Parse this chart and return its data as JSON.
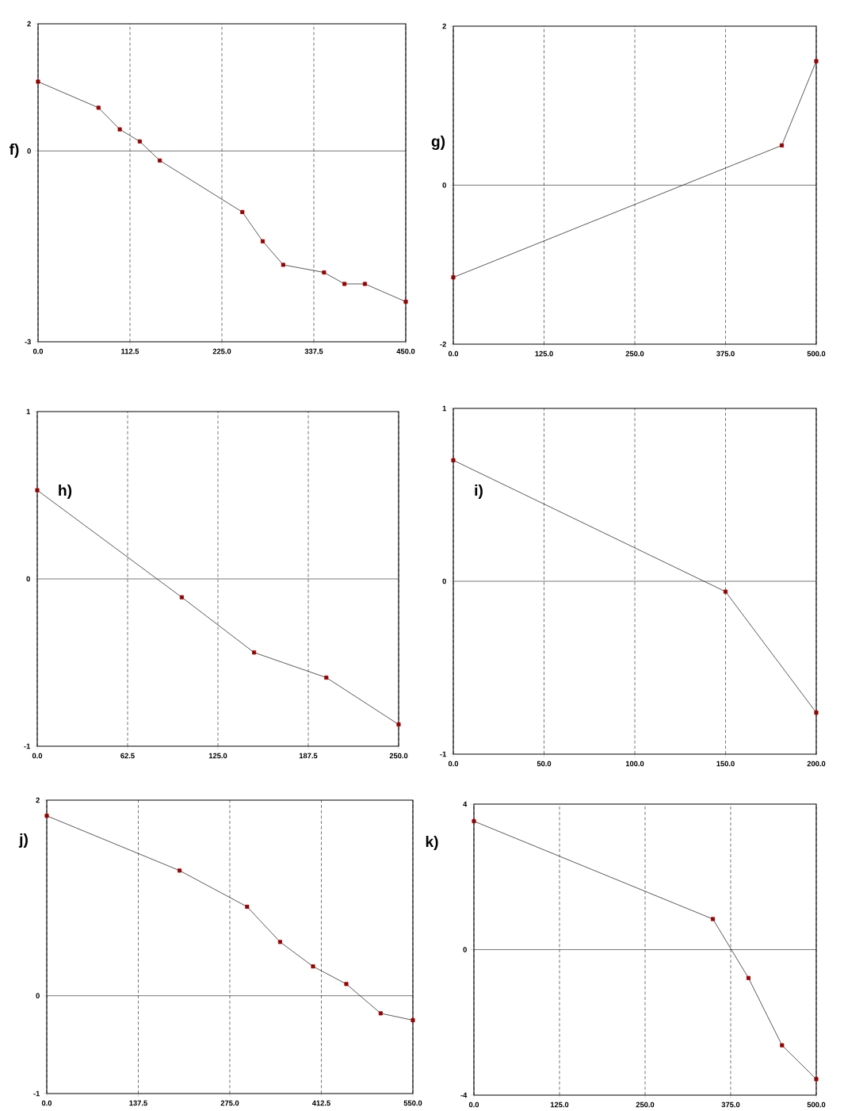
{
  "chart_data": [
    {
      "type": "line",
      "title": "f)",
      "x": [
        0,
        74,
        100,
        124.5,
        149,
        250,
        275,
        300,
        350,
        375,
        400,
        450
      ],
      "series": [
        {
          "color": "#303030",
          "values": [
            1.09,
            0.68,
            0.34,
            0.15,
            -0.15,
            -0.96,
            -1.42,
            -1.79,
            -1.91,
            -2.09,
            -2.09,
            -2.37
          ]
        }
      ],
      "xlim": [
        0,
        450
      ],
      "ylim": [
        -3,
        2
      ],
      "xticks": [
        {
          "value": 0,
          "label": "0.0"
        },
        112.5,
        {
          "value": 225,
          "label": "225.0"
        },
        337.5,
        {
          "value": 450,
          "label": "450.0"
        }
      ],
      "yticks": [
        -3,
        0,
        2
      ],
      "grid": "x",
      "marker": "square",
      "line_style": "solid",
      "ref_lines": [
        {
          "axis": "y",
          "value": 0
        }
      ]
    },
    {
      "type": "line",
      "title": "g)",
      "x": [
        0,
        452.5,
        500
      ],
      "series": [
        {
          "color": "#303030",
          "values": [
            -1.16,
            0.5,
            1.56
          ]
        }
      ],
      "xlim": [
        0,
        500
      ],
      "ylim": [
        -2,
        2
      ],
      "xticks": [
        {
          "value": 0,
          "label": "0.0"
        },
        {
          "value": 125,
          "label": "125.0"
        },
        {
          "value": 250,
          "label": "250.0"
        },
        {
          "value": 375,
          "label": "375.0"
        },
        {
          "value": 500,
          "label": "500.0"
        }
      ],
      "yticks": [
        -2,
        0,
        2
      ],
      "grid": "x",
      "marker": "square",
      "line_style": "solid",
      "ref_lines": [
        {
          "axis": "y",
          "value": 0
        }
      ]
    },
    {
      "type": "line",
      "title": "h)",
      "x": [
        0,
        100,
        150,
        200,
        250
      ],
      "series": [
        {
          "color": "#303030",
          "values": [
            0.53,
            -0.11,
            -0.44,
            -0.59,
            -0.87
          ]
        }
      ],
      "xlim": [
        0,
        250
      ],
      "ylim": [
        -1,
        1
      ],
      "xticks": [
        {
          "value": 0,
          "label": "0.0"
        },
        62.5,
        {
          "value": 125,
          "label": "125.0"
        },
        187.5,
        {
          "value": 250,
          "label": "250.0"
        }
      ],
      "yticks": [
        -1,
        0,
        1
      ],
      "grid": "x",
      "marker": "square",
      "line_style": "solid",
      "ref_lines": [
        {
          "axis": "y",
          "value": 0
        }
      ]
    },
    {
      "type": "line",
      "title": "i)",
      "x": [
        0,
        150,
        200
      ],
      "series": [
        {
          "color": "#303030",
          "values": [
            0.7,
            -0.06,
            -0.76
          ]
        }
      ],
      "xlim": [
        0,
        200
      ],
      "ylim": [
        -1,
        1
      ],
      "xticks": [
        {
          "value": 0,
          "label": "0.0"
        },
        {
          "value": 50,
          "label": "50.0"
        },
        {
          "value": 100,
          "label": "100.0"
        },
        {
          "value": 150,
          "label": "150.0"
        },
        {
          "value": 200,
          "label": "200.0"
        }
      ],
      "yticks": [
        -1,
        0,
        1
      ],
      "grid": "x",
      "marker": "square",
      "line_style": "solid",
      "ref_lines": [
        {
          "axis": "y",
          "value": 0
        }
      ]
    },
    {
      "type": "line",
      "title": "j)",
      "x": [
        0,
        199.5,
        301,
        350.5,
        400,
        450,
        501.6,
        550
      ],
      "series": [
        {
          "color": "#303030",
          "values": [
            1.84,
            1.28,
            0.91,
            0.55,
            0.3,
            0.12,
            -0.18,
            -0.25
          ]
        }
      ],
      "xlim": [
        0,
        550
      ],
      "ylim": [
        -1,
        2
      ],
      "xticks": [
        {
          "value": 0,
          "label": "0.0"
        },
        137.5,
        {
          "value": 275,
          "label": "275.0"
        },
        412.5,
        {
          "value": 550,
          "label": "550.0"
        }
      ],
      "yticks": [
        -1,
        0,
        2
      ],
      "grid": "x",
      "marker": "square",
      "line_style": "solid",
      "ref_lines": [
        {
          "axis": "y",
          "value": 0
        }
      ]
    },
    {
      "type": "line",
      "title": "k)",
      "x": [
        0,
        349,
        401,
        450,
        500
      ],
      "series": [
        {
          "color": "#303030",
          "values": [
            3.53,
            0.84,
            -0.78,
            -2.63,
            -3.56
          ]
        }
      ],
      "xlim": [
        0,
        500
      ],
      "ylim": [
        -4,
        4
      ],
      "xticks": [
        {
          "value": 0,
          "label": "0.0"
        },
        {
          "value": 125,
          "label": "125.0"
        },
        {
          "value": 250,
          "label": "250.0"
        },
        {
          "value": 375,
          "label": "375.0"
        },
        {
          "value": 500,
          "label": "500.0"
        }
      ],
      "yticks": [
        -4,
        0,
        4
      ],
      "grid": "x",
      "marker": "square",
      "line_style": "solid",
      "ref_lines": [
        {
          "axis": "y",
          "value": 0
        }
      ]
    }
  ]
}
